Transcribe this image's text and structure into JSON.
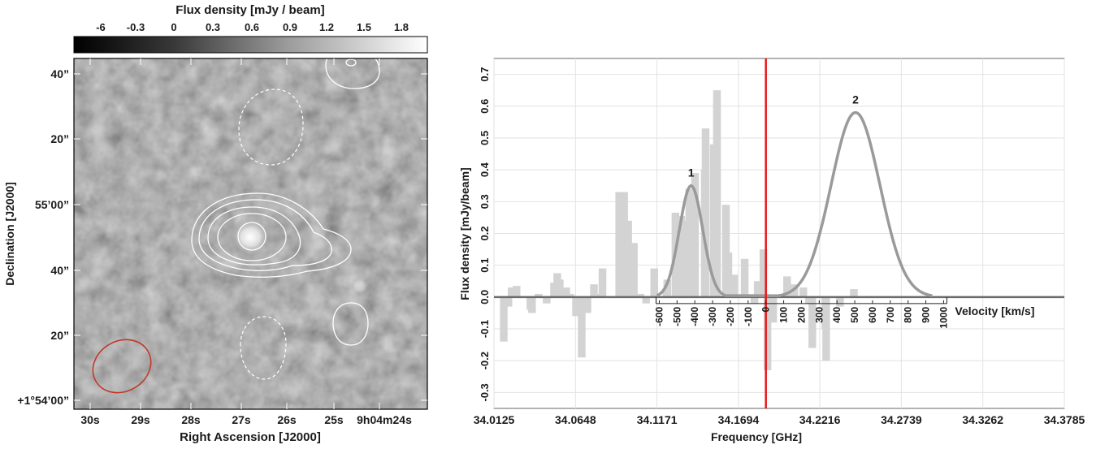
{
  "left_panel": {
    "colorbar_title": "Flux density [mJy / beam]",
    "colorbar_ticks": [
      "-6",
      "-0.3",
      "0",
      "0.3",
      "0.6",
      "0.9",
      "1.2",
      "1.5",
      "1.8"
    ],
    "ylabel": "Declination [J2000]",
    "xlabel": "Right Ascension [J2000]",
    "yticks": [
      "40”",
      "20”",
      "55’00”",
      "40”",
      "20”",
      "+1°54’00”"
    ],
    "xticks": [
      "30s",
      "29s",
      "28s",
      "27s",
      "26s",
      "25s",
      "9h04m24s"
    ],
    "colors": {
      "positive_contour": "#ffffff",
      "beam": "#c0392b"
    }
  },
  "chart_data": {
    "type": "bar",
    "xlabel": "Frequency [GHz]",
    "ylabel": "Flux density [mJy/beam]",
    "x2label": "Velocity [km/s]",
    "xlim": [
      34.0125,
      34.3785
    ],
    "ylim": [
      -0.35,
      0.75
    ],
    "xticks": [
      "34.0125",
      "34.0648",
      "34.1171",
      "34.1694",
      "34.2216",
      "34.2739",
      "34.3262",
      "34.3785"
    ],
    "yticks": [
      "0.7",
      "0.6",
      "0.5",
      "0.4",
      "0.3",
      "0.2",
      "0.1",
      "0.0",
      "-0.1",
      "-0.2",
      "-0.3"
    ],
    "velocity_ticks": [
      "-600",
      "-500",
      "-400",
      "-300",
      "-200",
      "-100",
      "0",
      "100",
      "200",
      "300",
      "400",
      "500",
      "600",
      "700",
      "800",
      "900",
      "1000"
    ],
    "velocity_zero_ghz": 34.187,
    "bin_width_ghz": 0.00522,
    "channels": [
      0.73,
      1.3,
      1.7,
      2.3,
      4,
      4.2,
      5,
      6,
      6.9,
      7.3,
      7.6,
      8.4,
      8.9,
      9.6,
      10.3,
      11,
      11.8,
      12.7,
      12.85,
      14.9,
      15.5,
      16,
      16.7,
      17.5,
      18.2,
      19.2,
      19.2,
      20.7,
      20.8,
      21.8,
      22.5,
      22.9,
      23.5,
      24.2,
      25.4,
      25.5,
      26.9,
      26.9,
      26.5,
      28,
      28.3,
      28.5,
      29,
      30.3,
      31.5,
      31.9,
      32.6,
      32.8,
      33.1,
      33.8,
      35.5,
      36.4,
      37.5,
      38.2,
      38.6,
      40.3,
      40.2,
      42,
      42,
      43.7
    ],
    "values": [
      -0.14,
      -0.03,
      0.03,
      0.035,
      -0.04,
      -0.05,
      0.01,
      -0.02,
      0.045,
      0.075,
      0.055,
      0.03,
      0.01,
      -0.06,
      -0.19,
      -0.05,
      0.04,
      0.01,
      0.09,
      0.33,
      0.33,
      0.24,
      0.17,
      0.01,
      -0.02,
      0.09,
      0.04,
      0.02,
      0.055,
      0.265,
      0.255,
      0.24,
      0.34,
      0.39,
      0.4,
      0.53,
      0.65,
      0.62,
      0.48,
      0.29,
      0.14,
      0.06,
      0.07,
      0.12,
      -0.02,
      0.05,
      0.15,
      0.01,
      -0.23,
      -0.08,
      0.065,
      0.04,
      0.03,
      -0.02,
      -0.16,
      -0.2,
      -0.1,
      -0.03,
      -0.01,
      0.025
    ],
    "gaussians": [
      {
        "label": "1",
        "amp": 0.35,
        "center_ghz": 34.139,
        "sigma_ghz": 0.0075
      },
      {
        "label": "2",
        "amp": 0.58,
        "center_ghz": 34.2445,
        "sigma_ghz": 0.0157
      }
    ],
    "grid": true,
    "colors": {
      "bars": "#d3d3d3",
      "fit": "#9a9a9a",
      "baseline": "#6b6b6b",
      "marker": "#e8191b"
    }
  }
}
